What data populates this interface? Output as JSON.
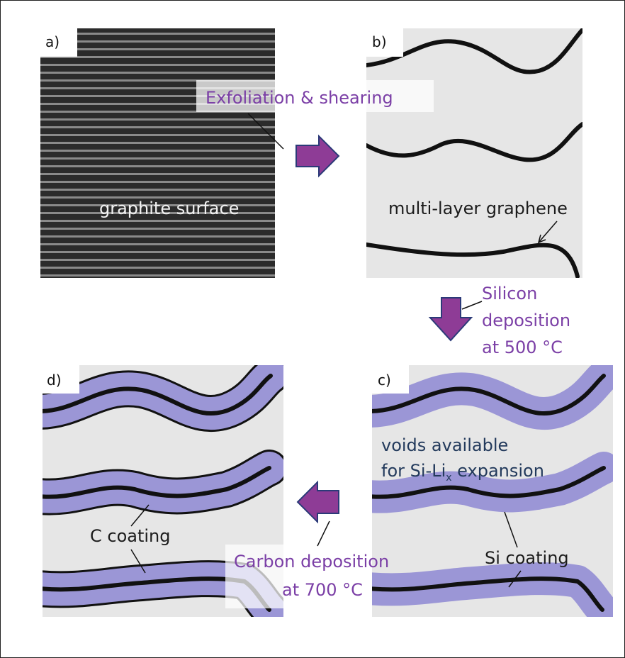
{
  "panels": {
    "a": {
      "label": "a)",
      "text": "graphite surface"
    },
    "b": {
      "label": "b)",
      "text": "multi-layer graphene"
    },
    "c": {
      "label": "c)",
      "text_line1": "voids  available",
      "text_line2": "for Si-Li",
      "text_sub": "x",
      "text_line2_end": " expansion",
      "coating": "Si coating"
    },
    "d": {
      "label": "d)",
      "coating": "C coating"
    }
  },
  "steps": {
    "exfoliation": "Exfoliation & shearing",
    "silicon": [
      "Silicon",
      "deposition",
      "at 500 °C"
    ],
    "carbon": [
      "Carbon deposition",
      "at 700 °C"
    ]
  },
  "colors": {
    "panel_bg": "#e6e6e6",
    "graphite_dark": "#2b2b2b",
    "graphite_stripe": "#8a8a8a",
    "arrow_purple": "#8e3c96",
    "si_blue": "#9b96d6",
    "label_purple": "#7b3fa6",
    "label_navy": "#233a5c"
  },
  "icons": [
    "arrow-right-icon",
    "arrow-down-icon",
    "arrow-left-icon"
  ]
}
